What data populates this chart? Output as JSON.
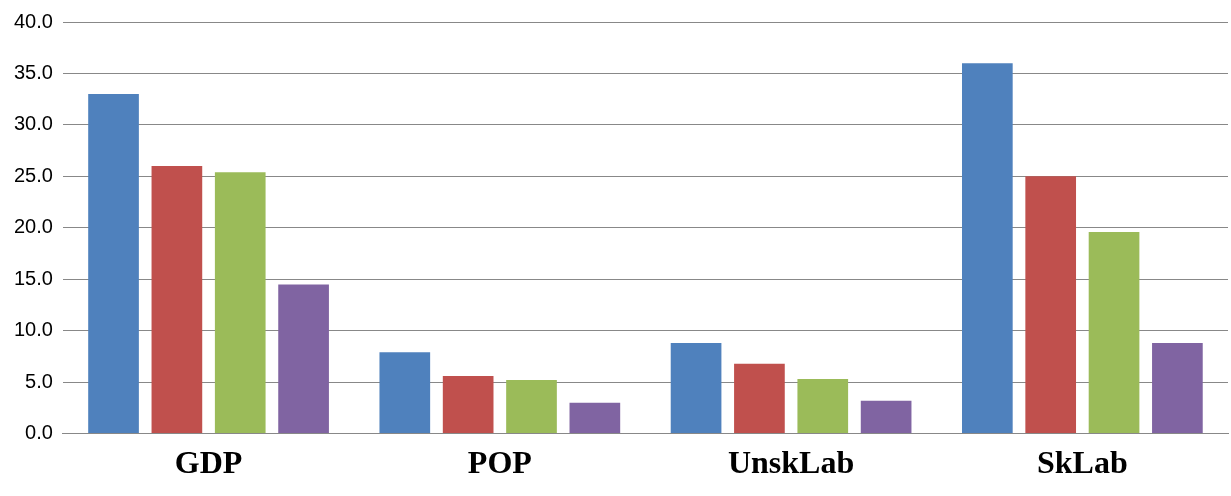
{
  "chart_data": {
    "type": "bar",
    "categories": [
      "GDP",
      "POP",
      "UnskLab",
      "SkLab"
    ],
    "series": [
      {
        "color": "#4f81bd",
        "values": [
          33.0,
          7.9,
          8.8,
          36.0
        ]
      },
      {
        "color": "#c0504d",
        "values": [
          26.0,
          5.6,
          6.8,
          25.0
        ]
      },
      {
        "color": "#9bbb59",
        "values": [
          25.4,
          5.2,
          5.3,
          19.6
        ]
      },
      {
        "color": "#8064a2",
        "values": [
          14.5,
          3.0,
          3.2,
          8.8
        ]
      }
    ],
    "ylim": [
      0,
      40
    ],
    "yticks": [
      {
        "value": 0,
        "label": "0.0"
      },
      {
        "value": 5,
        "label": "5.0"
      },
      {
        "value": 10,
        "label": "10.0"
      },
      {
        "value": 15,
        "label": "15.0"
      },
      {
        "value": 20,
        "label": "20.0"
      },
      {
        "value": 25,
        "label": "25.0"
      },
      {
        "value": 30,
        "label": "30.0"
      },
      {
        "value": 35,
        "label": "35.0"
      },
      {
        "value": 40,
        "label": "40.0"
      }
    ],
    "grid": "y",
    "legend": false
  }
}
